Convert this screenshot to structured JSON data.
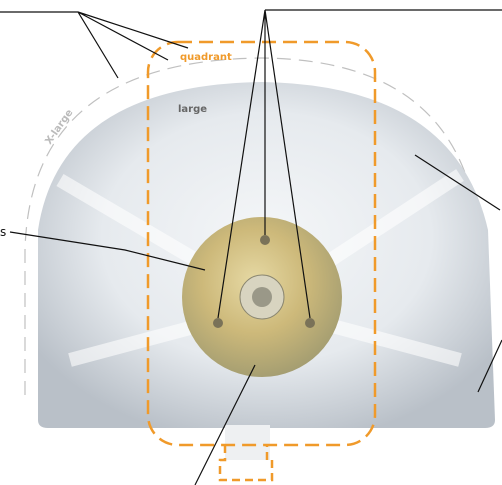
{
  "labels": {
    "quadrant": "quadrant",
    "large": "large",
    "x_large": "X-large",
    "side": "s"
  }
}
